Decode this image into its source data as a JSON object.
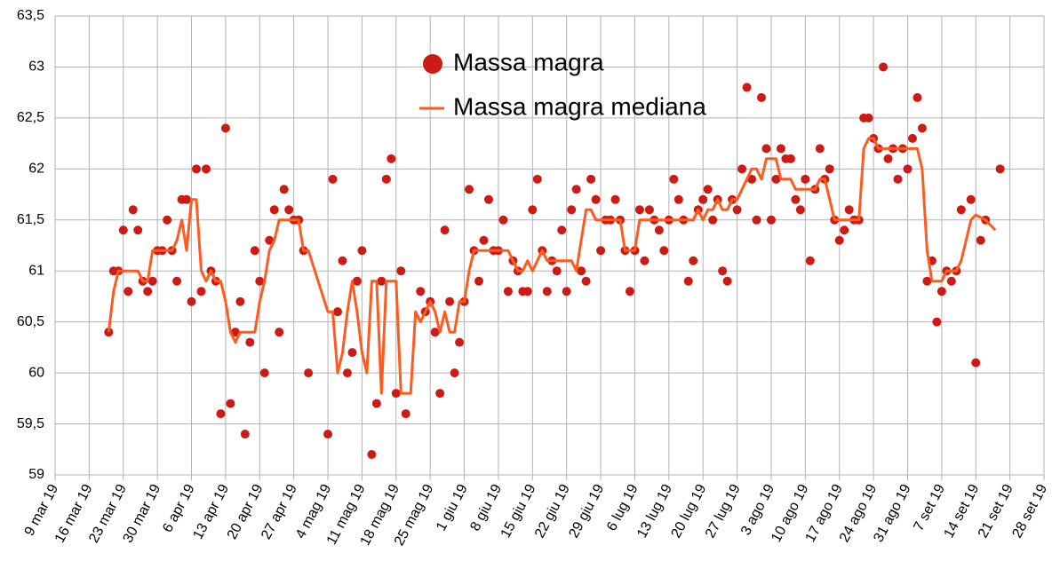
{
  "chart_data": {
    "type": "combo",
    "grid": true,
    "legend": "top",
    "xlim": [
      "2019-03-09",
      "2019-09-28"
    ],
    "xticks": [
      {
        "value": "2019-03-09",
        "label": "9 mar 19"
      },
      {
        "value": "2019-03-16",
        "label": "16 mar 19"
      },
      {
        "value": "2019-03-23",
        "label": "23 mar 19"
      },
      {
        "value": "2019-03-30",
        "label": "30 mar 19"
      },
      {
        "value": "2019-04-06",
        "label": "6 apr 19"
      },
      {
        "value": "2019-04-13",
        "label": "13 apr 19"
      },
      {
        "value": "2019-04-20",
        "label": "20 apr 19"
      },
      {
        "value": "2019-04-27",
        "label": "27 apr 19"
      },
      {
        "value": "2019-05-04",
        "label": "4 mag 19"
      },
      {
        "value": "2019-05-11",
        "label": "11 mag 19"
      },
      {
        "value": "2019-05-18",
        "label": "18 mag 19"
      },
      {
        "value": "2019-05-25",
        "label": "25 mag 19"
      },
      {
        "value": "2019-06-01",
        "label": "1 giu 19"
      },
      {
        "value": "2019-06-08",
        "label": "8 giu 19"
      },
      {
        "value": "2019-06-15",
        "label": "15 giu 19"
      },
      {
        "value": "2019-06-22",
        "label": "22 giu 19"
      },
      {
        "value": "2019-06-29",
        "label": "29 giu 19"
      },
      {
        "value": "2019-07-06",
        "label": "6 lug 19"
      },
      {
        "value": "2019-07-13",
        "label": "13 lug 19"
      },
      {
        "value": "2019-07-20",
        "label": "20 lug 19"
      },
      {
        "value": "2019-07-27",
        "label": "27 lug 19"
      },
      {
        "value": "2019-08-03",
        "label": "3 ago 19"
      },
      {
        "value": "2019-08-10",
        "label": "10 ago 19"
      },
      {
        "value": "2019-08-17",
        "label": "17 ago 19"
      },
      {
        "value": "2019-08-24",
        "label": "24 ago 19"
      },
      {
        "value": "2019-08-31",
        "label": "31 ago 19"
      },
      {
        "value": "2019-09-07",
        "label": "7 set 19"
      },
      {
        "value": "2019-09-14",
        "label": "14 set 19"
      },
      {
        "value": "2019-09-21",
        "label": "21 set 19"
      },
      {
        "value": "2019-09-28",
        "label": "28 set 19"
      }
    ],
    "ylim": [
      59,
      63.5
    ],
    "yticks": [
      59,
      {
        "value": 59.5,
        "label": "59,5"
      },
      60,
      {
        "value": 60.5,
        "label": "60,5"
      },
      61,
      {
        "value": 61.5,
        "label": "61,5"
      },
      62,
      {
        "value": 62.5,
        "label": "62,5"
      },
      63,
      {
        "value": 63.5,
        "label": "63,5"
      }
    ],
    "series": [
      {
        "name": "Massa magra",
        "type": "scatter",
        "color": "#cc1a14",
        "x": [
          "2019-03-20",
          "2019-03-21",
          "2019-03-22",
          "2019-03-23",
          "2019-03-24",
          "2019-03-25",
          "2019-03-26",
          "2019-03-27",
          "2019-03-28",
          "2019-03-29",
          "2019-03-30",
          "2019-03-31",
          "2019-04-01",
          "2019-04-02",
          "2019-04-03",
          "2019-04-04",
          "2019-04-05",
          "2019-04-06",
          "2019-04-07",
          "2019-04-08",
          "2019-04-09",
          "2019-04-10",
          "2019-04-11",
          "2019-04-12",
          "2019-04-13",
          "2019-04-14",
          "2019-04-15",
          "2019-04-16",
          "2019-04-17",
          "2019-04-18",
          "2019-04-19",
          "2019-04-20",
          "2019-04-21",
          "2019-04-22",
          "2019-04-23",
          "2019-04-24",
          "2019-04-25",
          "2019-04-26",
          "2019-04-27",
          "2019-04-28",
          "2019-04-29",
          "2019-04-30",
          "2019-05-04",
          "2019-05-05",
          "2019-05-06",
          "2019-05-07",
          "2019-05-08",
          "2019-05-09",
          "2019-05-10",
          "2019-05-11",
          "2019-05-13",
          "2019-05-14",
          "2019-05-15",
          "2019-05-16",
          "2019-05-17",
          "2019-05-18",
          "2019-05-19",
          "2019-05-20",
          "2019-05-23",
          "2019-05-24",
          "2019-05-25",
          "2019-05-26",
          "2019-05-27",
          "2019-05-28",
          "2019-05-29",
          "2019-05-30",
          "2019-05-31",
          "2019-06-01",
          "2019-06-02",
          "2019-06-03",
          "2019-06-04",
          "2019-06-05",
          "2019-06-06",
          "2019-06-07",
          "2019-06-08",
          "2019-06-09",
          "2019-06-10",
          "2019-06-11",
          "2019-06-12",
          "2019-06-13",
          "2019-06-14",
          "2019-06-15",
          "2019-06-16",
          "2019-06-17",
          "2019-06-18",
          "2019-06-19",
          "2019-06-20",
          "2019-06-21",
          "2019-06-22",
          "2019-06-23",
          "2019-06-24",
          "2019-06-25",
          "2019-06-26",
          "2019-06-27",
          "2019-06-28",
          "2019-06-29",
          "2019-06-30",
          "2019-07-01",
          "2019-07-02",
          "2019-07-03",
          "2019-07-04",
          "2019-07-05",
          "2019-07-06",
          "2019-07-07",
          "2019-07-08",
          "2019-07-09",
          "2019-07-10",
          "2019-07-11",
          "2019-07-12",
          "2019-07-13",
          "2019-07-14",
          "2019-07-15",
          "2019-07-16",
          "2019-07-17",
          "2019-07-18",
          "2019-07-19",
          "2019-07-20",
          "2019-07-21",
          "2019-07-22",
          "2019-07-23",
          "2019-07-24",
          "2019-07-25",
          "2019-07-26",
          "2019-07-27",
          "2019-07-28",
          "2019-07-29",
          "2019-07-30",
          "2019-07-31",
          "2019-08-01",
          "2019-08-02",
          "2019-08-03",
          "2019-08-04",
          "2019-08-05",
          "2019-08-06",
          "2019-08-07",
          "2019-08-08",
          "2019-08-09",
          "2019-08-10",
          "2019-08-11",
          "2019-08-12",
          "2019-08-13",
          "2019-08-14",
          "2019-08-15",
          "2019-08-16",
          "2019-08-17",
          "2019-08-18",
          "2019-08-19",
          "2019-08-20",
          "2019-08-21",
          "2019-08-22",
          "2019-08-23",
          "2019-08-24",
          "2019-08-25",
          "2019-08-26",
          "2019-08-27",
          "2019-08-28",
          "2019-08-29",
          "2019-08-30",
          "2019-08-31",
          "2019-09-01",
          "2019-09-02",
          "2019-09-03",
          "2019-09-04",
          "2019-09-05",
          "2019-09-06",
          "2019-09-07",
          "2019-09-08",
          "2019-09-09",
          "2019-09-10",
          "2019-09-11",
          "2019-09-13",
          "2019-09-14",
          "2019-09-15",
          "2019-09-16",
          "2019-09-19"
        ],
        "values": [
          60.4,
          61.0,
          61.0,
          61.4,
          60.8,
          61.6,
          61.4,
          60.9,
          60.8,
          60.9,
          61.2,
          61.2,
          61.5,
          61.2,
          60.9,
          61.7,
          61.7,
          60.7,
          62.0,
          60.8,
          62.0,
          61.0,
          60.9,
          59.6,
          62.4,
          59.7,
          60.4,
          60.7,
          59.4,
          60.3,
          61.2,
          60.9,
          60.0,
          61.3,
          61.6,
          60.4,
          61.8,
          61.6,
          61.5,
          61.5,
          61.2,
          60.0,
          59.4,
          61.9,
          60.6,
          61.1,
          60.0,
          60.2,
          60.9,
          61.2,
          59.2,
          59.7,
          60.9,
          61.9,
          62.1,
          59.8,
          61.0,
          59.6,
          60.8,
          60.6,
          60.7,
          60.4,
          59.8,
          61.4,
          60.7,
          60.0,
          60.3,
          60.7,
          61.8,
          61.2,
          60.9,
          61.3,
          61.7,
          61.2,
          61.2,
          61.5,
          60.8,
          61.1,
          61.0,
          60.8,
          60.8,
          61.6,
          61.9,
          61.2,
          60.8,
          61.1,
          61.0,
          61.4,
          60.8,
          61.6,
          61.8,
          61.0,
          60.9,
          61.9,
          61.7,
          61.2,
          61.5,
          61.5,
          61.7,
          61.5,
          61.2,
          60.8,
          61.2,
          61.6,
          61.1,
          61.6,
          61.5,
          61.4,
          61.2,
          61.5,
          61.9,
          61.7,
          61.5,
          60.9,
          61.1,
          61.6,
          61.7,
          61.8,
          61.5,
          61.7,
          61.0,
          60.9,
          61.7,
          61.6,
          62.0,
          62.8,
          61.9,
          61.5,
          62.7,
          62.2,
          61.5,
          61.9,
          62.2,
          62.1,
          62.1,
          61.7,
          61.6,
          61.9,
          61.1,
          61.8,
          62.2,
          61.9,
          62.0,
          61.5,
          61.3,
          61.4,
          61.6,
          61.5,
          61.5,
          62.5,
          62.5,
          62.3,
          62.2,
          63.0,
          62.1,
          62.2,
          61.9,
          62.2,
          62.0,
          62.3,
          62.7,
          62.4,
          60.9,
          61.1,
          60.5,
          60.8,
          61.0,
          60.9,
          61.0,
          61.6,
          61.7,
          60.1,
          61.3,
          61.5,
          62.0
        ]
      },
      {
        "name": "Massa magra mediana",
        "type": "line",
        "color": "#ff5a1f",
        "x": [
          "2019-03-20",
          "2019-03-21",
          "2019-03-22",
          "2019-03-26",
          "2019-03-27",
          "2019-03-28",
          "2019-03-29",
          "2019-04-02",
          "2019-04-03",
          "2019-04-04",
          "2019-04-05",
          "2019-04-06",
          "2019-04-07",
          "2019-04-08",
          "2019-04-09",
          "2019-04-10",
          "2019-04-11",
          "2019-04-12",
          "2019-04-13",
          "2019-04-14",
          "2019-04-15",
          "2019-04-16",
          "2019-04-19",
          "2019-04-20",
          "2019-04-21",
          "2019-04-22",
          "2019-04-23",
          "2019-04-24",
          "2019-04-28",
          "2019-04-29",
          "2019-04-30",
          "2019-05-04",
          "2019-05-05",
          "2019-05-06",
          "2019-05-07",
          "2019-05-08",
          "2019-05-09",
          "2019-05-10",
          "2019-05-11",
          "2019-05-12",
          "2019-05-13",
          "2019-05-14",
          "2019-05-15",
          "2019-05-16",
          "2019-05-18",
          "2019-05-19",
          "2019-05-21",
          "2019-05-22",
          "2019-05-23",
          "2019-05-24",
          "2019-05-25",
          "2019-05-26",
          "2019-05-27",
          "2019-05-28",
          "2019-05-29",
          "2019-05-30",
          "2019-05-31",
          "2019-06-01",
          "2019-06-02",
          "2019-06-03",
          "2019-06-10",
          "2019-06-11",
          "2019-06-12",
          "2019-06-13",
          "2019-06-14",
          "2019-06-15",
          "2019-06-16",
          "2019-06-17",
          "2019-06-18",
          "2019-06-23",
          "2019-06-24",
          "2019-06-25",
          "2019-06-26",
          "2019-06-27",
          "2019-06-28",
          "2019-07-03",
          "2019-07-04",
          "2019-07-06",
          "2019-07-07",
          "2019-07-18",
          "2019-07-19",
          "2019-07-20",
          "2019-07-21",
          "2019-07-22",
          "2019-07-23",
          "2019-07-24",
          "2019-07-25",
          "2019-07-26",
          "2019-07-27",
          "2019-07-28",
          "2019-07-29",
          "2019-07-30",
          "2019-07-31",
          "2019-08-01",
          "2019-08-02",
          "2019-08-04",
          "2019-08-05",
          "2019-08-07",
          "2019-08-08",
          "2019-08-12",
          "2019-08-13",
          "2019-08-14",
          "2019-08-15",
          "2019-08-16",
          "2019-08-21",
          "2019-08-22",
          "2019-08-23",
          "2019-08-24",
          "2019-08-25",
          "2019-09-02",
          "2019-09-03",
          "2019-09-04",
          "2019-09-05",
          "2019-09-07",
          "2019-09-08",
          "2019-09-10",
          "2019-09-11",
          "2019-09-12",
          "2019-09-13",
          "2019-09-14",
          "2019-09-16",
          "2019-09-17",
          "2019-09-18"
        ],
        "values": [
          60.4,
          60.8,
          61.0,
          61.0,
          60.9,
          60.9,
          61.2,
          61.2,
          61.3,
          61.5,
          61.2,
          61.7,
          61.7,
          61.0,
          60.9,
          61.0,
          60.9,
          60.9,
          60.7,
          60.4,
          60.3,
          60.4,
          60.4,
          60.7,
          60.9,
          61.2,
          61.3,
          61.5,
          61.5,
          61.2,
          61.2,
          60.6,
          60.6,
          60.0,
          60.2,
          60.6,
          60.9,
          60.6,
          60.2,
          60.0,
          60.9,
          60.9,
          59.8,
          60.9,
          60.9,
          59.8,
          59.8,
          60.6,
          60.5,
          60.6,
          60.7,
          60.6,
          60.4,
          60.6,
          60.4,
          60.4,
          60.7,
          60.7,
          61.0,
          61.2,
          61.2,
          61.1,
          61.0,
          61.0,
          61.1,
          61.0,
          61.1,
          61.2,
          61.1,
          61.1,
          61.0,
          61.3,
          61.6,
          61.6,
          61.5,
          61.5,
          61.2,
          61.2,
          61.5,
          61.5,
          61.6,
          61.5,
          61.6,
          61.6,
          61.7,
          61.6,
          61.6,
          61.7,
          61.7,
          61.8,
          61.9,
          62.0,
          62.0,
          61.9,
          62.1,
          62.1,
          61.9,
          61.9,
          61.8,
          61.8,
          61.9,
          61.9,
          61.7,
          61.5,
          61.5,
          62.2,
          62.3,
          62.3,
          62.2,
          62.2,
          62.0,
          61.2,
          60.9,
          60.9,
          61.0,
          61.0,
          61.1,
          61.3,
          61.5,
          61.55,
          61.5,
          61.45,
          61.4
        ]
      }
    ]
  }
}
